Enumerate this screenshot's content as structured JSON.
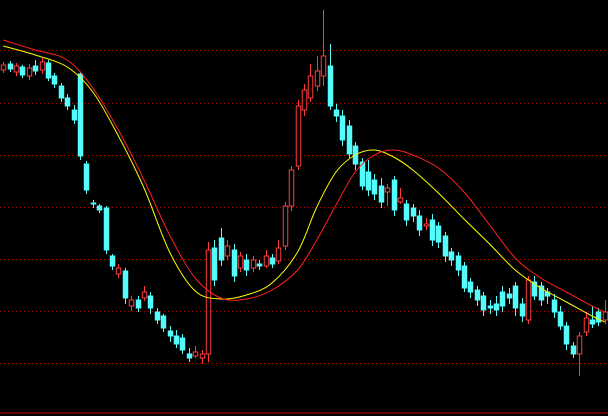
{
  "chart_data": {
    "type": "candlestick",
    "open": [
      346,
      352,
      344,
      349,
      340,
      350,
      346,
      353,
      340,
      330,
      318,
      306,
      342,
      252,
      213,
      210,
      208,
      160,
      142,
      145,
      110,
      116,
      118,
      120,
      104,
      100,
      85,
      80,
      78,
      62,
      60,
      58,
      62,
      168,
      178,
      160,
      166,
      148,
      156,
      148,
      152,
      150,
      158,
      155,
      170,
      210,
      250,
      306,
      318,
      330,
      340,
      350,
      306,
      300,
      290,
      270,
      254,
      244,
      236,
      230,
      224,
      236,
      214,
      212,
      208,
      200,
      190,
      196,
      190,
      180,
      164,
      160,
      150,
      134,
      126,
      120,
      110,
      112,
      124,
      122,
      130,
      112,
      96,
      134,
      130,
      124,
      116,
      104,
      90,
      70,
      62,
      84,
      96,
      104,
      96
    ],
    "high": [
      354,
      355,
      353,
      351,
      352,
      356,
      358,
      356,
      343,
      333,
      322,
      311,
      344,
      255,
      216,
      212,
      210,
      162,
      152,
      148,
      120,
      120,
      130,
      124,
      108,
      102,
      90,
      86,
      82,
      68,
      70,
      66,
      174,
      176,
      188,
      176,
      172,
      164,
      162,
      160,
      156,
      166,
      162,
      176,
      214,
      250,
      316,
      332,
      352,
      360,
      406,
      372,
      312,
      306,
      296,
      274,
      258,
      256,
      242,
      238,
      232,
      240,
      228,
      216,
      212,
      206,
      198,
      202,
      194,
      184,
      168,
      164,
      154,
      138,
      130,
      124,
      116,
      120,
      130,
      128,
      134,
      118,
      140,
      140,
      134,
      128,
      122,
      110,
      94,
      74,
      84,
      104,
      110,
      108,
      116
    ],
    "low": [
      343,
      344,
      340,
      338,
      336,
      341,
      342,
      335,
      328,
      314,
      306,
      292,
      256,
      222,
      208,
      203,
      162,
      146,
      138,
      112,
      105,
      104,
      115,
      102,
      92,
      84,
      74,
      68,
      62,
      54,
      58,
      52,
      54,
      130,
      150,
      156,
      134,
      144,
      140,
      144,
      146,
      148,
      148,
      152,
      166,
      205,
      246,
      300,
      314,
      325,
      330,
      306,
      294,
      270,
      258,
      246,
      226,
      220,
      216,
      208,
      210,
      200,
      212,
      190,
      194,
      180,
      186,
      170,
      168,
      154,
      150,
      140,
      124,
      118,
      110,
      100,
      102,
      100,
      104,
      112,
      100,
      94,
      92,
      116,
      110,
      112,
      98,
      86,
      66,
      58,
      40,
      80,
      88,
      90,
      92
    ],
    "close": [
      351,
      347,
      350,
      341,
      348,
      345,
      354,
      338,
      332,
      318,
      310,
      296,
      260,
      226,
      212,
      206,
      166,
      150,
      148,
      118,
      116,
      108,
      124,
      108,
      96,
      88,
      80,
      72,
      66,
      58,
      64,
      62,
      166,
      136,
      156,
      170,
      140,
      160,
      146,
      156,
      150,
      160,
      152,
      168,
      210,
      246,
      310,
      326,
      340,
      345,
      360,
      310,
      300,
      276,
      262,
      252,
      230,
      226,
      222,
      214,
      228,
      206,
      218,
      196,
      200,
      186,
      192,
      176,
      174,
      160,
      156,
      146,
      128,
      124,
      116,
      106,
      108,
      106,
      110,
      118,
      108,
      100,
      136,
      120,
      116,
      120,
      104,
      90,
      72,
      62,
      80,
      98,
      92,
      94,
      104
    ],
    "ma": [
      {
        "color": "#ffff00",
        "x": [
          0,
          5,
          10,
          14,
          18,
          22,
          26,
          30,
          34,
          38,
          42,
          46,
          49,
          52,
          55,
          58,
          61,
          64,
          68,
          72,
          76,
          80,
          84,
          88,
          92,
          94
        ],
        "values": [
          370,
          361,
          349,
          324,
          280,
          228,
          164,
          125,
          117,
          121,
          133,
          164,
          209,
          244,
          261,
          266,
          259,
          246,
          223,
          197,
          172,
          146,
          128,
          114,
          100,
          94
        ]
      },
      {
        "color": "#ff2020",
        "x": [
          0,
          5,
          10,
          14,
          18,
          22,
          26,
          30,
          34,
          38,
          42,
          46,
          49,
          52,
          55,
          58,
          61,
          64,
          68,
          72,
          76,
          80,
          84,
          88,
          92,
          94
        ],
        "values": [
          376,
          366,
          356,
          328,
          286,
          236,
          181,
          138,
          118,
          117,
          126,
          146,
          176,
          211,
          244,
          261,
          266,
          261,
          248,
          224,
          191,
          158,
          138,
          124,
          110,
          104
        ]
      }
    ],
    "xlim": [
      -0.5,
      94.5
    ],
    "ylim": [
      0,
      416
    ],
    "yticks": [
      366,
      313,
      261,
      209,
      157,
      105,
      53
    ],
    "grid": true,
    "grid_color": "#b00000",
    "up_color": "#ff3c3c",
    "down_color": "#54fcfc"
  }
}
